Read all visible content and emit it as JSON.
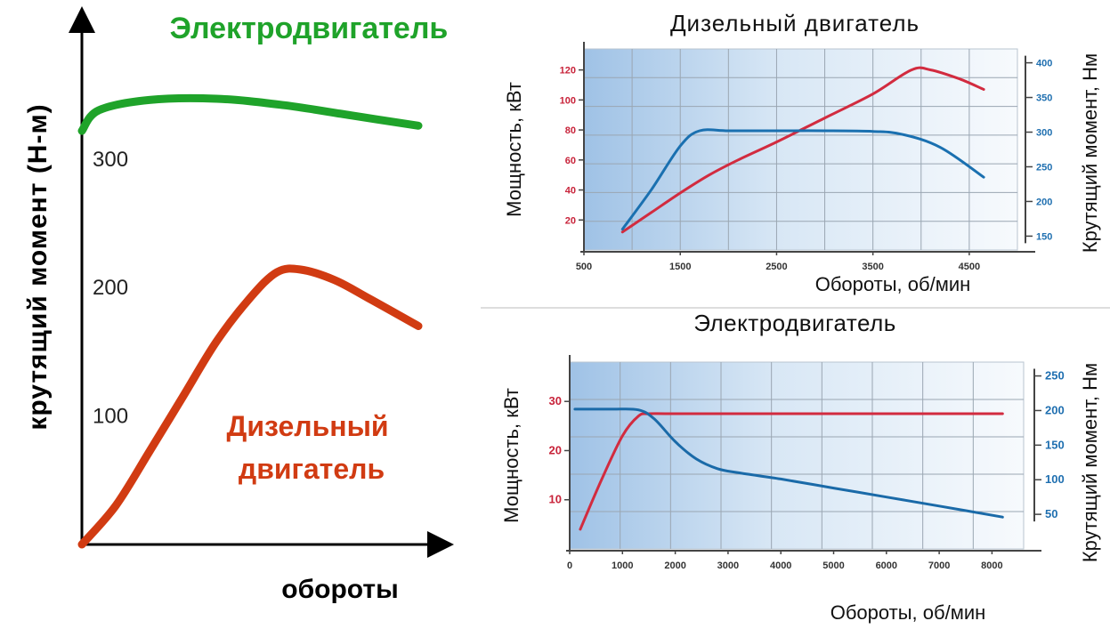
{
  "chart_data": [
    {
      "type": "line",
      "ylabel": "крутящий момент (Н-м)",
      "xlabel": "обороты",
      "y_ticks": [
        "100",
        "200",
        "300"
      ],
      "y_tick_values": [
        100,
        200,
        300
      ],
      "ylim": [
        0,
        410
      ],
      "xlim": [
        0,
        1
      ],
      "grid": false,
      "series": [
        {
          "name": "Электродвигатель",
          "label_lines": [
            "Электродвигатель"
          ],
          "color": "#1fa32a",
          "x": [
            0,
            0.05,
            0.2,
            0.4,
            0.6,
            0.8,
            1.0
          ],
          "y": [
            322,
            338,
            346,
            347,
            342,
            334,
            326
          ]
        },
        {
          "name": "Дизельный двигатель",
          "label_lines": [
            "Дизельный",
            "двигатель"
          ],
          "color": "#d13b12",
          "x": [
            0,
            0.1,
            0.2,
            0.3,
            0.4,
            0.5,
            0.58,
            0.65,
            0.75,
            0.85,
            1.0
          ],
          "y": [
            0,
            30,
            72,
            115,
            158,
            192,
            212,
            214,
            206,
            192,
            170
          ]
        }
      ]
    },
    {
      "type": "line",
      "title": "Дизельный двигатель",
      "xlabel": "Обороты, об/мин",
      "ylabel": "Мощность, кВт",
      "y2label": "Крутящий момент, Нм",
      "x_ticks": [
        500,
        1500,
        2500,
        3500,
        4500
      ],
      "xlim": [
        500,
        5000
      ],
      "y_ticks": [
        20,
        40,
        60,
        80,
        100,
        120
      ],
      "ylim": [
        0,
        134
      ],
      "y2_ticks": [
        150,
        200,
        250,
        300,
        350,
        400
      ],
      "y2lim": [
        130,
        420
      ],
      "grid": true,
      "series": [
        {
          "name": "Мощность",
          "color": "#d22b3f",
          "axis": "left",
          "x": [
            900,
            1200,
            1500,
            1800,
            2100,
            2500,
            3000,
            3500,
            3900,
            4100,
            4400,
            4650
          ],
          "y": [
            12,
            25,
            38,
            50,
            60,
            72,
            88,
            104,
            120,
            120,
            114,
            107
          ]
        },
        {
          "name": "Крутящий момент",
          "color": "#1a70b0",
          "axis": "right",
          "x": [
            900,
            1200,
            1500,
            1700,
            2000,
            2500,
            3000,
            3500,
            3800,
            4200,
            4650
          ],
          "y": [
            160,
            217,
            280,
            302,
            302,
            302,
            302,
            301,
            297,
            278,
            235
          ]
        }
      ]
    },
    {
      "type": "line",
      "title": "Электродвигатель",
      "xlabel": "Обороты, об/мин",
      "ylabel": "Мощность, кВт",
      "y2label": "Крутящий момент, Нм",
      "x_ticks": [
        0,
        1000,
        2000,
        3000,
        4000,
        5000,
        6000,
        7000,
        8000
      ],
      "xlim": [
        0,
        8600
      ],
      "y_ticks": [
        10,
        20,
        30
      ],
      "ylim": [
        0,
        38
      ],
      "y2_ticks": [
        50,
        100,
        150,
        200,
        250
      ],
      "y2lim": [
        0,
        270
      ],
      "grid": true,
      "series": [
        {
          "name": "Мощность",
          "color": "#d22b3f",
          "axis": "left",
          "x": [
            200,
            600,
            1000,
            1300,
            1500,
            2000,
            4000,
            6000,
            8200
          ],
          "y": [
            4,
            14,
            23,
            27,
            27.5,
            27.5,
            27.5,
            27.5,
            27.5
          ]
        },
        {
          "name": "Крутящий момент",
          "color": "#1a6aa8",
          "axis": "right",
          "x": [
            100,
            800,
            1300,
            1600,
            2000,
            2400,
            2800,
            3200,
            4000,
            5000,
            6000,
            7000,
            8200
          ],
          "y": [
            202,
            202,
            201,
            188,
            155,
            130,
            116,
            110,
            101,
            88,
            75,
            62,
            46
          ]
        }
      ]
    }
  ]
}
